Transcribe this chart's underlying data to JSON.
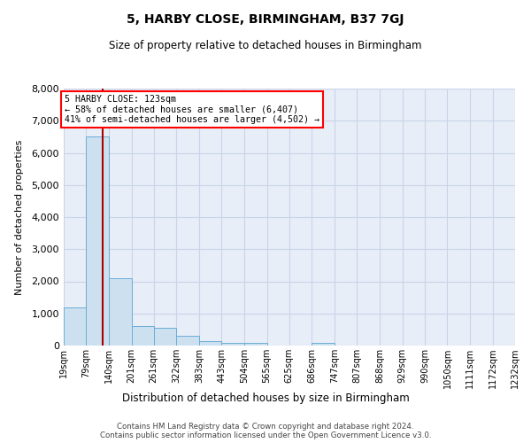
{
  "title": "5, HARBY CLOSE, BIRMINGHAM, B37 7GJ",
  "subtitle": "Size of property relative to detached houses in Birmingham",
  "xlabel": "Distribution of detached houses by size in Birmingham",
  "ylabel": "Number of detached properties",
  "annotation_title": "5 HARBY CLOSE: 123sqm",
  "annotation_line1": "← 58% of detached houses are smaller (6,407)",
  "annotation_line2": "41% of semi-detached houses are larger (4,502) →",
  "property_size": 123,
  "bin_edges": [
    19,
    79,
    140,
    201,
    261,
    322,
    383,
    443,
    504,
    565,
    625,
    686,
    747,
    807,
    868,
    929,
    990,
    1050,
    1111,
    1172,
    1232
  ],
  "bin_labels": [
    "19sqm",
    "79sqm",
    "140sqm",
    "201sqm",
    "261sqm",
    "322sqm",
    "383sqm",
    "443sqm",
    "504sqm",
    "565sqm",
    "625sqm",
    "686sqm",
    "747sqm",
    "807sqm",
    "868sqm",
    "929sqm",
    "990sqm",
    "1050sqm",
    "1111sqm",
    "1172sqm",
    "1232sqm"
  ],
  "bar_heights": [
    1200,
    6500,
    2100,
    600,
    560,
    300,
    130,
    90,
    90,
    0,
    0,
    90,
    0,
    0,
    0,
    0,
    0,
    0,
    0,
    0
  ],
  "bar_color": "#cce0f0",
  "bar_edgecolor": "#6baed6",
  "vline_color": "#aa0000",
  "vline_x": 123,
  "ylim": [
    0,
    8000
  ],
  "yticks": [
    0,
    1000,
    2000,
    3000,
    4000,
    5000,
    6000,
    7000,
    8000
  ],
  "grid_color": "#c8d4e8",
  "bg_color": "#e8eef8",
  "footnote1": "Contains HM Land Registry data © Crown copyright and database right 2024.",
  "footnote2": "Contains public sector information licensed under the Open Government Licence v3.0."
}
